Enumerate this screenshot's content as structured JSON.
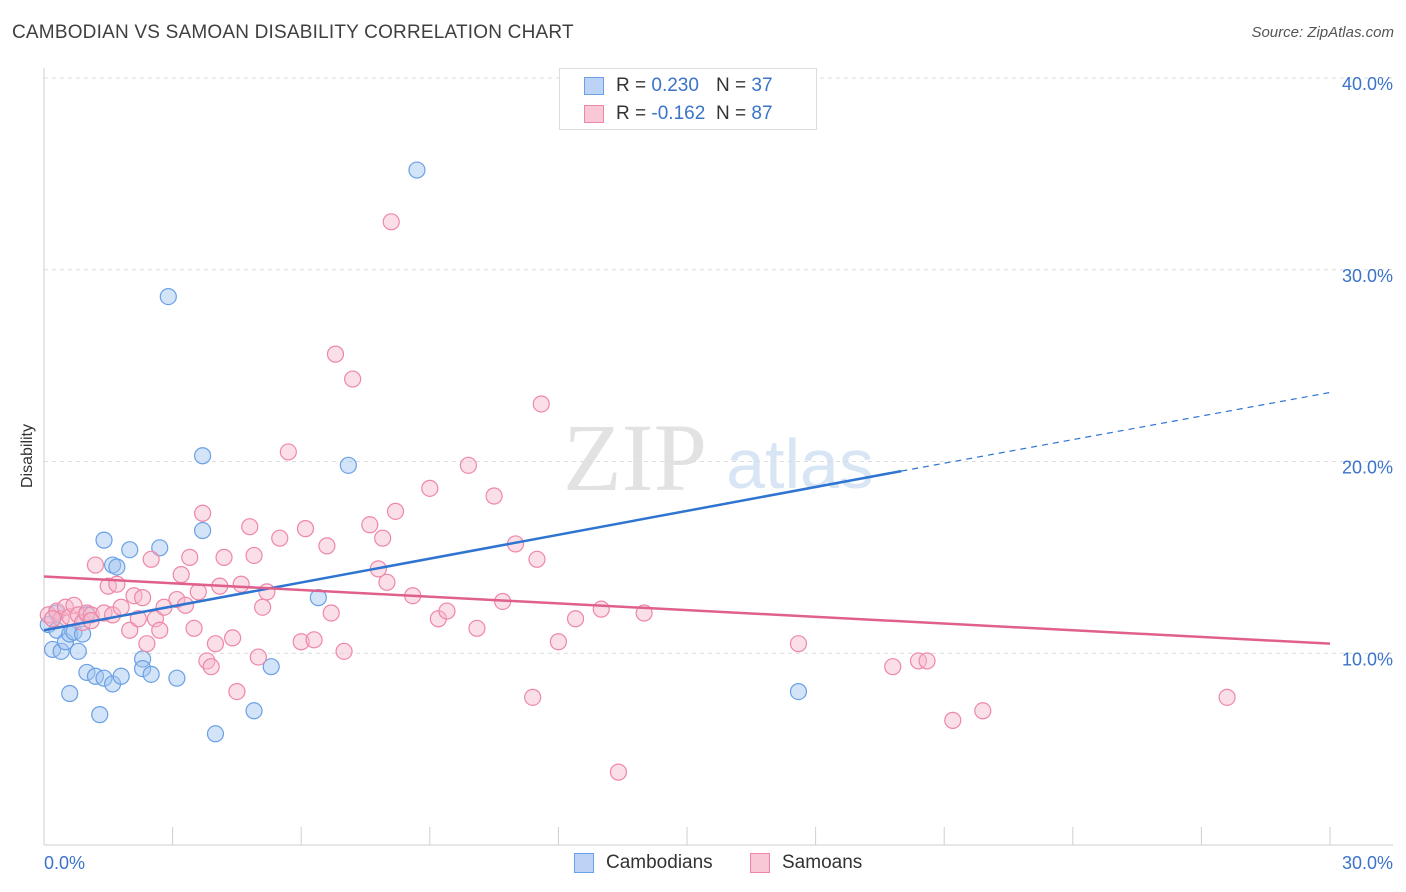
{
  "title": "CAMBODIAN VS SAMOAN DISABILITY CORRELATION CHART",
  "source": "Source: ZipAtlas.com",
  "watermark": {
    "zip": "ZIP",
    "atlas": "atlas"
  },
  "legend": {
    "rows": [
      {
        "r_label": "R =",
        "r_value": "0.230",
        "n_label": "N =",
        "n_value": "37",
        "color": "#6aa0e6"
      },
      {
        "r_label": "R =",
        "r_value": "-0.162",
        "n_label": "N =",
        "n_value": "87",
        "color": "#ee87a6"
      }
    ]
  },
  "bottom_legend": [
    {
      "label": "Cambodians",
      "color": "#6aa0e6"
    },
    {
      "label": "Samoans",
      "color": "#ee87a6"
    }
  ],
  "chart_data": {
    "type": "scatter",
    "title": "CAMBODIAN VS SAMOAN DISABILITY CORRELATION CHART",
    "xlabel": "",
    "ylabel": "Disability",
    "xlim": [
      0,
      30
    ],
    "ylim": [
      0,
      40
    ],
    "x_tick_labels": [
      "0.0%",
      "30.0%"
    ],
    "y_ticks": [
      10,
      20,
      30,
      40
    ],
    "y_tick_labels": [
      "10.0%",
      "20.0%",
      "30.0%",
      "40.0%"
    ],
    "grid": true,
    "series": [
      {
        "name": "Cambodians",
        "color": "#6aa0e6",
        "line_color": "#2f74d0",
        "trend": {
          "x": [
            0,
            20
          ],
          "y": [
            11.2,
            19.5
          ],
          "dashed_to_x": 30,
          "dashed_to_y": 23.6
        },
        "points": [
          [
            0.1,
            11.5
          ],
          [
            0.2,
            10.2
          ],
          [
            0.3,
            11.2
          ],
          [
            0.4,
            10.1
          ],
          [
            0.5,
            10.6
          ],
          [
            0.6,
            11.0
          ],
          [
            0.7,
            11.1
          ],
          [
            0.8,
            10.1
          ],
          [
            0.9,
            11.0
          ],
          [
            1.0,
            12.0
          ],
          [
            1.0,
            9.0
          ],
          [
            0.6,
            7.9
          ],
          [
            1.2,
            8.8
          ],
          [
            1.4,
            8.7
          ],
          [
            1.6,
            8.4
          ],
          [
            1.3,
            6.8
          ],
          [
            1.4,
            15.9
          ],
          [
            1.6,
            14.6
          ],
          [
            1.7,
            14.5
          ],
          [
            2.0,
            15.4
          ],
          [
            2.3,
            9.7
          ],
          [
            2.3,
            9.2
          ],
          [
            2.5,
            8.9
          ],
          [
            2.7,
            15.5
          ],
          [
            2.9,
            28.6
          ],
          [
            3.1,
            8.7
          ],
          [
            3.7,
            20.3
          ],
          [
            3.7,
            16.4
          ],
          [
            4.0,
            5.8
          ],
          [
            4.9,
            7.0
          ],
          [
            5.3,
            9.3
          ],
          [
            6.4,
            12.9
          ],
          [
            7.1,
            19.8
          ],
          [
            8.7,
            35.2
          ],
          [
            17.6,
            8.0
          ],
          [
            1.8,
            8.8
          ],
          [
            0.3,
            12.1
          ]
        ]
      },
      {
        "name": "Samoans",
        "color": "#ee87a6",
        "line_color": "#e0608d",
        "trend": {
          "x": [
            0,
            30
          ],
          "y": [
            14.0,
            10.5
          ]
        },
        "points": [
          [
            0.1,
            12.0
          ],
          [
            0.3,
            12.2
          ],
          [
            0.4,
            11.8
          ],
          [
            0.5,
            12.4
          ],
          [
            0.6,
            11.9
          ],
          [
            0.7,
            12.5
          ],
          [
            0.8,
            12.0
          ],
          [
            0.9,
            11.6
          ],
          [
            1.0,
            12.1
          ],
          [
            1.1,
            12.0
          ],
          [
            1.2,
            14.6
          ],
          [
            1.4,
            12.1
          ],
          [
            1.5,
            13.5
          ],
          [
            1.6,
            12.0
          ],
          [
            1.7,
            13.6
          ],
          [
            1.8,
            12.4
          ],
          [
            2.0,
            11.2
          ],
          [
            2.1,
            13.0
          ],
          [
            2.3,
            12.9
          ],
          [
            2.4,
            10.5
          ],
          [
            2.5,
            14.9
          ],
          [
            2.6,
            11.8
          ],
          [
            2.7,
            11.2
          ],
          [
            2.8,
            12.4
          ],
          [
            3.1,
            12.8
          ],
          [
            3.2,
            14.1
          ],
          [
            3.3,
            12.5
          ],
          [
            3.4,
            15.0
          ],
          [
            3.5,
            11.3
          ],
          [
            3.6,
            13.2
          ],
          [
            3.7,
            17.3
          ],
          [
            3.8,
            9.6
          ],
          [
            3.9,
            9.3
          ],
          [
            4.0,
            10.5
          ],
          [
            4.1,
            13.5
          ],
          [
            4.2,
            15.0
          ],
          [
            4.4,
            10.8
          ],
          [
            4.5,
            8.0
          ],
          [
            4.6,
            13.6
          ],
          [
            4.8,
            16.6
          ],
          [
            4.9,
            15.1
          ],
          [
            5.0,
            9.8
          ],
          [
            5.1,
            12.4
          ],
          [
            5.2,
            13.2
          ],
          [
            5.5,
            16.0
          ],
          [
            5.7,
            20.5
          ],
          [
            6.0,
            10.6
          ],
          [
            6.1,
            16.5
          ],
          [
            6.3,
            10.7
          ],
          [
            6.6,
            15.6
          ],
          [
            6.7,
            12.1
          ],
          [
            6.8,
            25.6
          ],
          [
            7.0,
            10.1
          ],
          [
            7.2,
            24.3
          ],
          [
            7.6,
            16.7
          ],
          [
            7.8,
            14.4
          ],
          [
            7.9,
            16.0
          ],
          [
            8.0,
            13.7
          ],
          [
            8.2,
            17.4
          ],
          [
            8.6,
            13.0
          ],
          [
            9.0,
            18.6
          ],
          [
            9.2,
            11.8
          ],
          [
            9.4,
            12.2
          ],
          [
            9.9,
            19.8
          ],
          [
            10.1,
            11.3
          ],
          [
            10.5,
            18.2
          ],
          [
            10.7,
            12.7
          ],
          [
            11.0,
            15.7
          ],
          [
            11.4,
            7.7
          ],
          [
            11.5,
            14.9
          ],
          [
            11.6,
            23.0
          ],
          [
            12.0,
            10.6
          ],
          [
            12.4,
            11.8
          ],
          [
            13.0,
            12.3
          ],
          [
            13.4,
            3.8
          ],
          [
            14.0,
            12.1
          ],
          [
            17.6,
            10.5
          ],
          [
            19.8,
            9.3
          ],
          [
            20.4,
            9.6
          ],
          [
            20.6,
            9.6
          ],
          [
            21.2,
            6.5
          ],
          [
            21.9,
            7.0
          ],
          [
            27.6,
            7.7
          ],
          [
            0.2,
            11.8
          ],
          [
            1.1,
            11.7
          ],
          [
            2.2,
            11.8
          ],
          [
            8.1,
            32.5
          ]
        ]
      }
    ]
  }
}
